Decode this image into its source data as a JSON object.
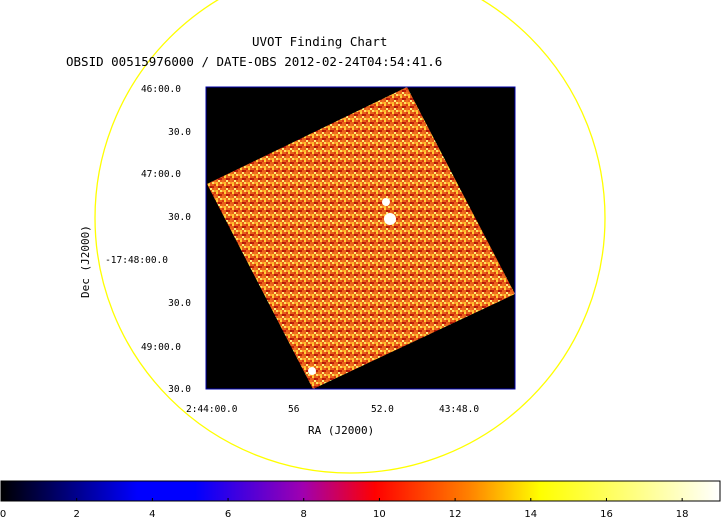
{
  "title": "UVOT Finding Chart",
  "subtitle": "OBSID 00515976000 / DATE-OBS 2012-02-24T04:54:41.6",
  "axes": {
    "xlabel": "RA (J2000)",
    "ylabel": "Dec (J2000)",
    "x_ticks": [
      "2:44:00.0",
      "56",
      "52.0",
      "43:48.0"
    ],
    "y_ticks": [
      "46:00.0",
      "30.0",
      "47:00.0",
      "30.0",
      "-17:48:00.0",
      "30.0",
      "49:00.0",
      "30.0"
    ]
  },
  "colorbar": {
    "ticks": [
      "0",
      "2",
      "4",
      "6",
      "8",
      "10",
      "12",
      "14",
      "16",
      "18"
    ],
    "min": 0,
    "max": 19,
    "colormap": [
      "#000000",
      "#0000ff",
      "#ff0000",
      "#ffff00",
      "#ffffff"
    ]
  },
  "colors": {
    "circle": "#ffff00",
    "frame": "#0000aa",
    "background": "#000000"
  }
}
